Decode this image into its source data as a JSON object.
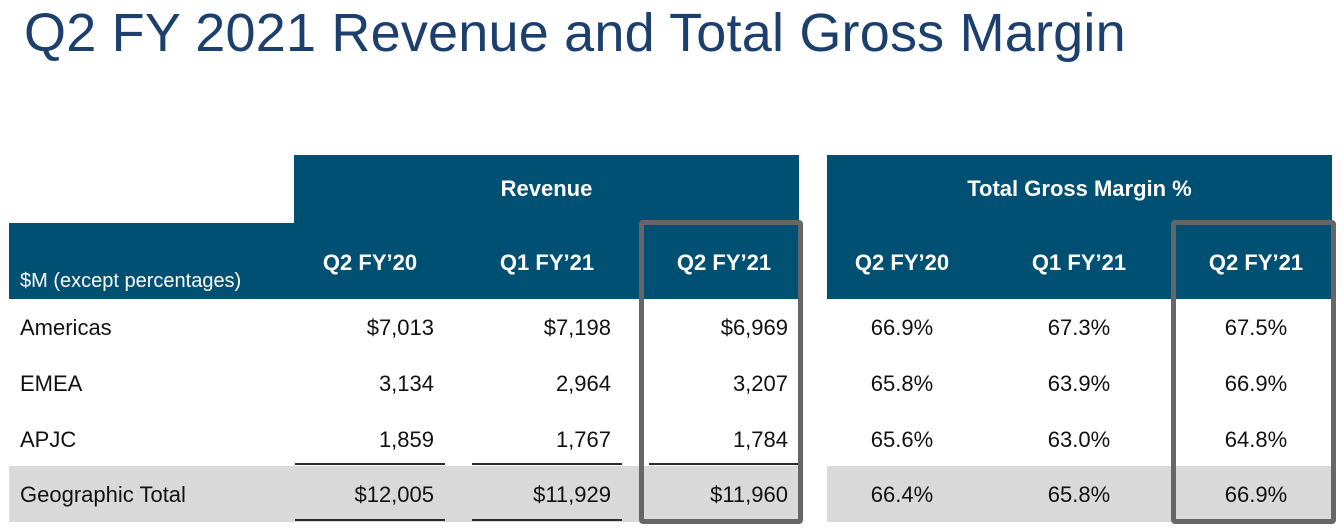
{
  "title": "Q2 FY 2021 Revenue and Total Gross Margin",
  "units_label": "$M (except percentages)",
  "groups": {
    "revenue": "Revenue",
    "gross_margin": "Total Gross Margin %"
  },
  "revenue_columns": [
    "Q2 FY’20",
    "Q1 FY’21",
    "Q2 FY’21"
  ],
  "gm_columns": [
    "Q2 FY’20",
    "Q1 FY’21",
    "Q2 FY’21"
  ],
  "rows": [
    {
      "label": "Americas",
      "revenue": [
        "$7,013",
        "$7,198",
        "$6,969"
      ],
      "gm": [
        "66.9%",
        "67.3%",
        "67.5%"
      ]
    },
    {
      "label": "EMEA",
      "revenue": [
        "3,134",
        "2,964",
        "3,207"
      ],
      "gm": [
        "65.8%",
        "63.9%",
        "66.9%"
      ]
    },
    {
      "label": "APJC",
      "revenue": [
        "1,859",
        "1,767",
        "1,784"
      ],
      "gm": [
        "65.6%",
        "63.0%",
        "64.8%"
      ]
    },
    {
      "label": "Geographic Total",
      "revenue": [
        "$12,005",
        "$11,929",
        "$11,960"
      ],
      "gm": [
        "66.4%",
        "65.8%",
        "66.9%"
      ]
    }
  ],
  "colors": {
    "header_bg": "#005073",
    "title": "#1c3f6e",
    "total_row_bg": "#d9d9d9",
    "highlight_border": "#666666"
  }
}
